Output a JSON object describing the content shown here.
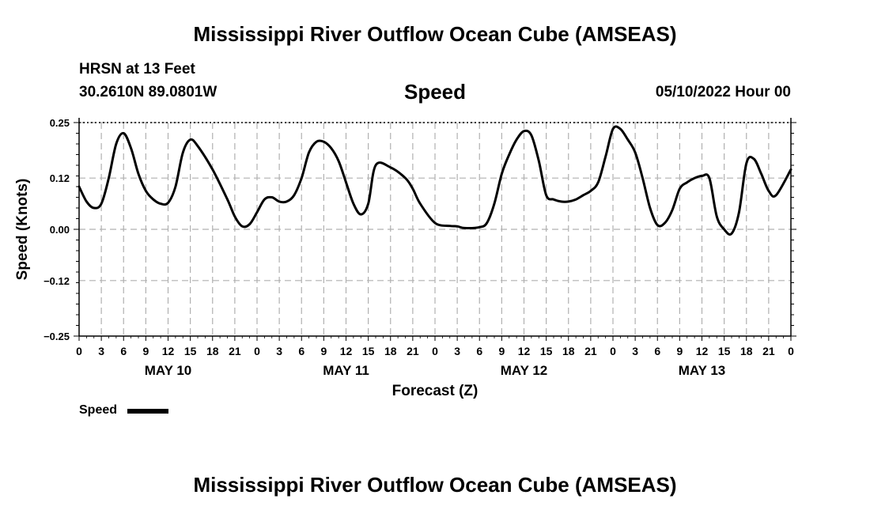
{
  "title": "Mississippi River Outflow Ocean Cube (AMSEAS)",
  "station": "HRSN at 13 Feet",
  "coords": "30.2610N  89.0801W",
  "variable": "Speed",
  "datetime": "05/10/2022 Hour 00",
  "footer_title": "Mississippi River Outflow Ocean Cube (AMSEAS)",
  "legend": {
    "label": "Speed",
    "color": "#000000"
  },
  "chart_data": {
    "type": "line",
    "title": "Speed",
    "xlabel": "Forecast (Z)",
    "ylabel": "Speed (Knots)",
    "ylim": [
      -0.25,
      0.25
    ],
    "xlim": [
      0,
      96
    ],
    "y_ticks": [
      0.25,
      0.12,
      0.0,
      -0.12,
      -0.25
    ],
    "y_tick_labels": [
      "0.25",
      "0.12",
      "0.00",
      "−0.12",
      "−0.25"
    ],
    "x_ticks": [
      0,
      3,
      6,
      9,
      12,
      15,
      18,
      21,
      24,
      27,
      30,
      33,
      36,
      39,
      42,
      45,
      48,
      51,
      54,
      57,
      60,
      63,
      66,
      69,
      72,
      75,
      78,
      81,
      84,
      87,
      90,
      93,
      96
    ],
    "x_tick_labels": [
      "0",
      "3",
      "6",
      "9",
      "12",
      "15",
      "18",
      "21",
      "0",
      "3",
      "6",
      "9",
      "12",
      "15",
      "18",
      "21",
      "0",
      "3",
      "6",
      "9",
      "12",
      "15",
      "18",
      "21",
      "0",
      "3",
      "6",
      "9",
      "12",
      "15",
      "18",
      "21",
      "0"
    ],
    "day_labels": [
      {
        "label": "MAY 10",
        "hour": 12
      },
      {
        "label": "MAY 11",
        "hour": 36
      },
      {
        "label": "MAY 12",
        "hour": 60
      },
      {
        "label": "MAY 13",
        "hour": 84
      }
    ],
    "grid": true,
    "series": [
      {
        "name": "Speed",
        "color": "#000000",
        "x": [
          0,
          1,
          2,
          3,
          4,
          5,
          6,
          7,
          8,
          9,
          10,
          11,
          12,
          13,
          14,
          15,
          16,
          18,
          20,
          21,
          22,
          23,
          24,
          25,
          26,
          27,
          28,
          29,
          30,
          31,
          32,
          33,
          34,
          35,
          36,
          37,
          38,
          39,
          40,
          42,
          44,
          45,
          46,
          48,
          50,
          51,
          52,
          54,
          55,
          56,
          57,
          58,
          59,
          60,
          61,
          62,
          63,
          64,
          65,
          66,
          67,
          68,
          69,
          70,
          71,
          72,
          73,
          74,
          75,
          76,
          77,
          78,
          79,
          80,
          81,
          82,
          83,
          84,
          85,
          86,
          87,
          88,
          89,
          90,
          91,
          92,
          93,
          94,
          96
        ],
        "values": [
          0.1,
          0.065,
          0.05,
          0.06,
          0.12,
          0.2,
          0.225,
          0.19,
          0.13,
          0.09,
          0.07,
          0.06,
          0.062,
          0.1,
          0.18,
          0.21,
          0.195,
          0.14,
          0.07,
          0.03,
          0.007,
          0.012,
          0.04,
          0.07,
          0.075,
          0.065,
          0.065,
          0.08,
          0.12,
          0.18,
          0.205,
          0.205,
          0.19,
          0.16,
          0.11,
          0.06,
          0.035,
          0.06,
          0.15,
          0.145,
          0.12,
          0.095,
          0.06,
          0.015,
          0.008,
          0.007,
          0.003,
          0.005,
          0.015,
          0.06,
          0.13,
          0.175,
          0.21,
          0.23,
          0.22,
          0.16,
          0.08,
          0.07,
          0.065,
          0.065,
          0.07,
          0.08,
          0.09,
          0.11,
          0.17,
          0.235,
          0.235,
          0.21,
          0.18,
          0.12,
          0.05,
          0.01,
          0.015,
          0.045,
          0.095,
          0.11,
          0.12,
          0.125,
          0.12,
          0.03,
          0.0,
          -0.01,
          0.04,
          0.155,
          0.165,
          0.13,
          0.09,
          0.08,
          0.14
        ]
      }
    ]
  }
}
